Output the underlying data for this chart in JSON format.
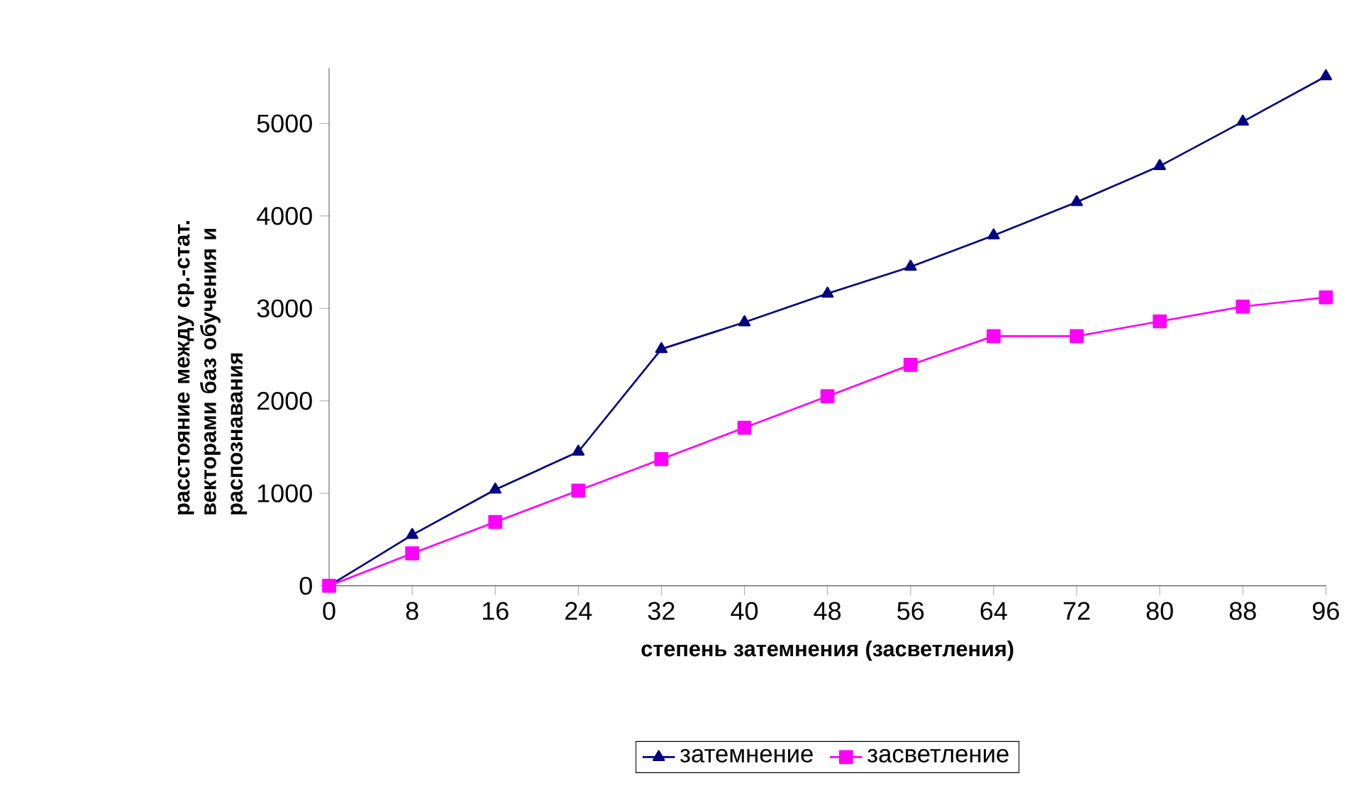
{
  "chart_data": {
    "type": "line",
    "xlabel": "степень затемнения (засветления)",
    "ylabel": "расстояние между ср.-стат. векторами баз обучения и распознавания",
    "x": [
      0,
      8,
      16,
      24,
      32,
      40,
      48,
      56,
      64,
      72,
      80,
      88,
      96
    ],
    "series": [
      {
        "name": "затемнение",
        "color": "#000080",
        "marker": "triangle",
        "values": [
          0,
          550,
          1040,
          1450,
          2560,
          2850,
          3160,
          3450,
          3790,
          4150,
          4540,
          5020,
          5510
        ]
      },
      {
        "name": "засветление",
        "color": "#ff00ff",
        "marker": "square",
        "values": [
          0,
          350,
          690,
          1030,
          1370,
          1710,
          2050,
          2390,
          2700,
          2700,
          2860,
          3020,
          3120
        ]
      }
    ],
    "xlim": [
      0,
      96
    ],
    "xticks": [
      0,
      8,
      16,
      24,
      32,
      40,
      48,
      56,
      64,
      72,
      80,
      88,
      96
    ],
    "ylim": [
      0,
      5600
    ],
    "yticks": [
      0,
      1000,
      2000,
      3000,
      4000,
      5000
    ],
    "grid": false,
    "legend": "bottom",
    "line_style": "solid"
  }
}
